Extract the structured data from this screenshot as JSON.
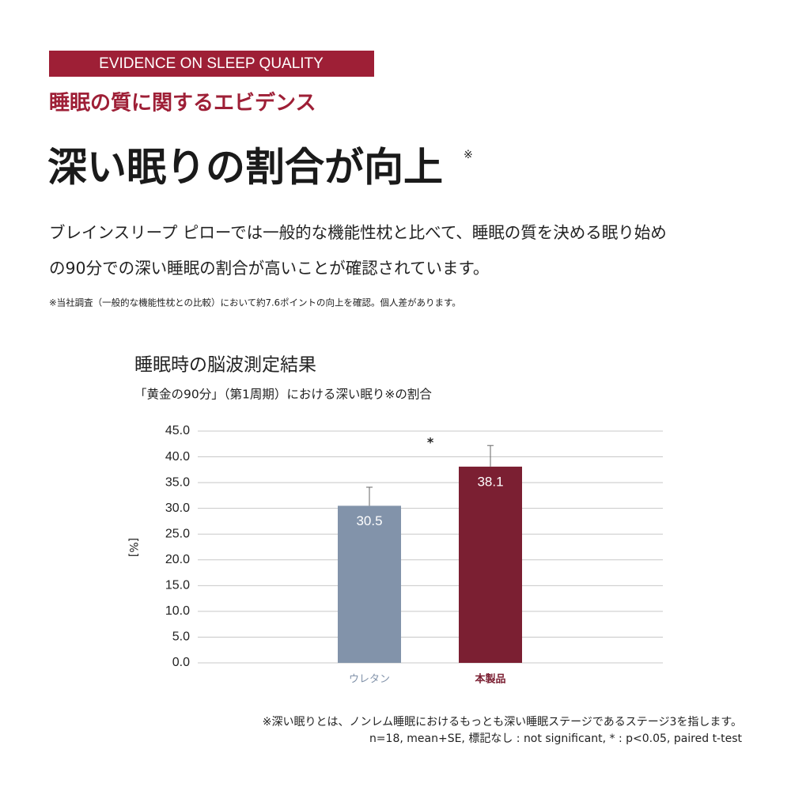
{
  "badge": "EVIDENCE ON SLEEP QUALITY",
  "subtitle": "睡眠の質に関するエビデンス",
  "headline": "深い眠りの割合が向上",
  "headline_mark": "※",
  "body": [
    "ブレインスリープ ピローでは一般的な機能性枕と比べて、睡眠の質を決める眠り始め",
    "の90分での深い睡眠の割合が高いことが確認されています。"
  ],
  "note": "※当社調査（一般的な機能性枕との比較）において約7.6ポイントの向上を確認。個人差があります。",
  "chart_data": {
    "type": "bar",
    "title": "睡眠時の脳波測定結果",
    "subtitle": "「黄金の90分」（第1周期）における深い眠り※の割合",
    "ylabel": "[%]",
    "categories": [
      "ウレタン",
      "本製品"
    ],
    "values": [
      30.5,
      38.1
    ],
    "value_labels": [
      "30.5",
      "38.1"
    ],
    "errors": [
      3.6,
      4.1
    ],
    "colors": [
      "#8293aa",
      "#7b1f32"
    ],
    "significance": "*",
    "ylim": [
      0,
      45
    ],
    "yticks": [
      {
        "value": 0,
        "label": "0.0"
      },
      {
        "value": 5,
        "label": "5.0"
      },
      {
        "value": 10,
        "label": "10.0"
      },
      {
        "value": 15,
        "label": "15.0"
      },
      {
        "value": 20,
        "label": "20.0"
      },
      {
        "value": 25,
        "label": "25.0"
      },
      {
        "value": 30,
        "label": "30.0"
      },
      {
        "value": 35,
        "label": "35.0"
      },
      {
        "value": 40,
        "label": "40.0"
      },
      {
        "value": 45,
        "label": "45.0"
      }
    ],
    "grid": true,
    "footnotes": [
      "※深い眠りとは、ノンレム睡眠におけるもっとも深い睡眠ステージであるステージ3を指します。",
      "n=18, mean+SE, 標記なし : not significant, * : p<0.05, paired t-test"
    ]
  }
}
